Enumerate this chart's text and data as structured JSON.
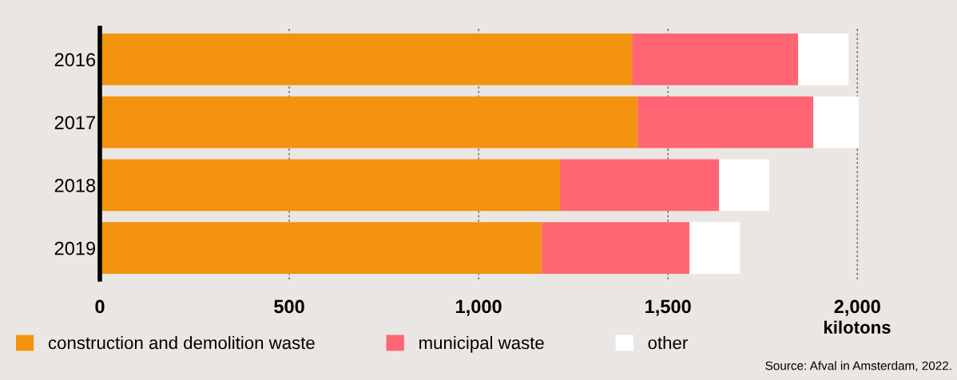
{
  "chart_data": {
    "type": "bar",
    "orientation": "horizontal",
    "stacked": true,
    "categories": [
      "2016",
      "2017",
      "2018",
      "2019"
    ],
    "series": [
      {
        "name": "construction and demolition waste",
        "color": "#f3930f",
        "values": [
          1405,
          1420,
          1215,
          1167
        ]
      },
      {
        "name": "municipal waste",
        "color": "#ff6572",
        "values": [
          439,
          464,
          420,
          390
        ]
      },
      {
        "name": "other",
        "color": "#ffffff",
        "values": [
          133,
          120,
          133,
          133
        ]
      }
    ],
    "xlabel": "kilotons",
    "xlim": [
      0,
      2010
    ],
    "xticks": [
      0,
      500,
      {
        "value": 1000,
        "label": "1,000"
      },
      {
        "value": 1500,
        "label": "1,500"
      },
      {
        "value": 2000,
        "label": "2,000"
      }
    ],
    "grid": "x",
    "legend": "bottom",
    "annotations": [
      "Source: Afval in Amsterdam, 2022."
    ]
  }
}
